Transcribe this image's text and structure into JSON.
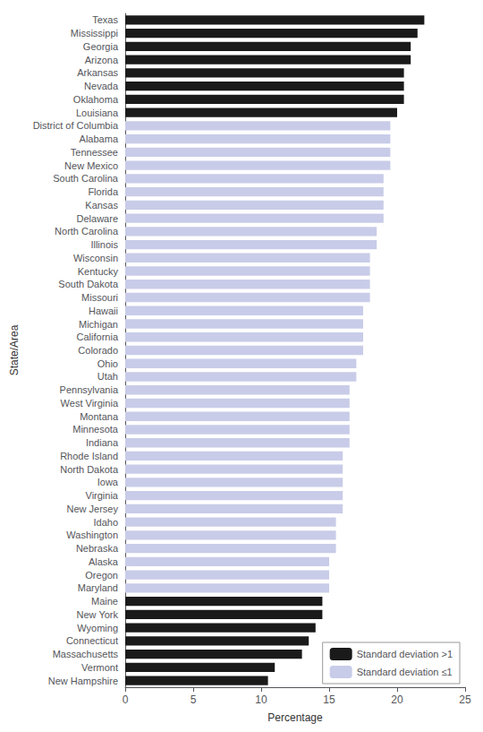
{
  "chart_data": {
    "type": "bar",
    "orientation": "horizontal",
    "x_label": "Percentage",
    "y_label": "State/Area",
    "categories": [
      "Texas",
      "Mississippi",
      "Georgia",
      "Arizona",
      "Arkansas",
      "Nevada",
      "Oklahoma",
      "Louisiana",
      "District of Columbia",
      "Alabama",
      "Tennessee",
      "New Mexico",
      "South Carolina",
      "Florida",
      "Kansas",
      "Delaware",
      "North Carolina",
      "Illinois",
      "Wisconsin",
      "Kentucky",
      "South Dakota",
      "Missouri",
      "Hawaii",
      "Michigan",
      "California",
      "Colorado",
      "Ohio",
      "Utah",
      "Pennsylvania",
      "West Virginia",
      "Montana",
      "Minnesota",
      "Indiana",
      "Rhode Island",
      "North Dakota",
      "Iowa",
      "Virginia",
      "New Jersey",
      "Idaho",
      "Washington",
      "Nebraska",
      "Alaska",
      "Oregon",
      "Maryland",
      "Maine",
      "New York",
      "Wyoming",
      "Connecticut",
      "Massachusetts",
      "Vermont",
      "New Hampshire"
    ],
    "series": [
      {
        "name": "Standard deviation >1",
        "color": "#1a1a1a",
        "values": [
          22.0,
          21.5,
          21.0,
          21.0,
          20.5,
          20.5,
          20.5,
          20.0,
          null,
          null,
          null,
          null,
          null,
          null,
          null,
          null,
          null,
          null,
          null,
          null,
          null,
          null,
          null,
          null,
          null,
          null,
          null,
          null,
          null,
          null,
          null,
          null,
          null,
          null,
          null,
          null,
          null,
          null,
          null,
          null,
          null,
          null,
          null,
          null,
          14.5,
          14.5,
          14.0,
          13.5,
          13.0,
          11.0,
          10.5
        ]
      },
      {
        "name": "Standard deviation ≤1",
        "color": "#c8cce8",
        "values": [
          null,
          null,
          null,
          null,
          null,
          null,
          null,
          null,
          19.5,
          19.5,
          19.5,
          19.5,
          19.0,
          19.0,
          19.0,
          19.0,
          18.5,
          18.5,
          18.0,
          18.0,
          18.0,
          18.0,
          17.5,
          17.5,
          17.5,
          17.5,
          17.0,
          17.0,
          16.5,
          16.5,
          16.5,
          16.5,
          16.5,
          16.0,
          16.0,
          16.0,
          16.0,
          16.0,
          15.5,
          15.5,
          15.5,
          15.0,
          15.0,
          15.0,
          null,
          null,
          null,
          null,
          null,
          null,
          null
        ]
      }
    ],
    "xlim": [
      0,
      25
    ],
    "xticks": [
      0,
      5,
      10,
      15,
      20,
      25
    ],
    "grid": false,
    "legend": "lower right"
  }
}
